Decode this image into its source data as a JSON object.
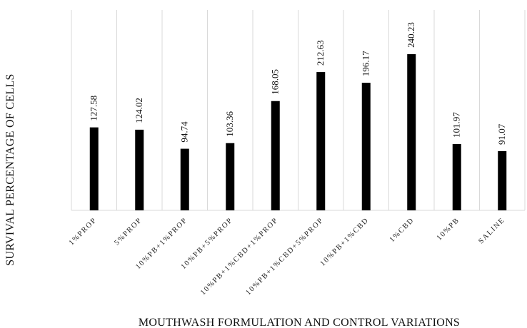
{
  "chart_data": {
    "type": "bar",
    "categories": [
      "1%PROP",
      "5%PROP",
      "10%PB+1%PROP",
      "10%PB+5%PROP",
      "10%PB+1%CBD+1%PROP",
      "10%PB+1%CBD+5%PROP",
      "10%PB+1%CBD",
      "1%CBD",
      "10%PB",
      "SALINE"
    ],
    "values": [
      127.58,
      124.02,
      94.74,
      103.36,
      168.05,
      212.63,
      196.17,
      240.23,
      101.97,
      91.07
    ],
    "data_labels": [
      "127.58",
      "124.02",
      "94.74",
      "103.36",
      "168.05",
      "212.63",
      "196.17",
      "240.23",
      "101.97",
      "91.07"
    ],
    "title": "",
    "xlabel": "MOUTHWASH FORMULATION AND CONTROL VARIATIONS",
    "ylabel": "SURVIVAL PERCENTAGE OF CELLS",
    "ylim": [
      0,
      270
    ],
    "grid": "vertical category separators",
    "legend": "none",
    "bar_color": "#000000",
    "grid_color": "#d9d9d9"
  }
}
